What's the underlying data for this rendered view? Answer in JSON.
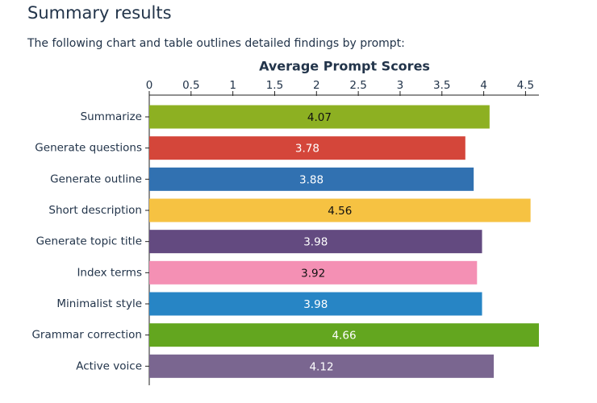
{
  "header": {
    "title": "Summary results",
    "intro": "The following chart and table outlines detailed findings by prompt:"
  },
  "chart_data": {
    "type": "bar",
    "orientation": "horizontal",
    "title": "Average Prompt Scores",
    "categories": [
      "Summarize",
      "Generate questions",
      "Generate outline",
      "Short description",
      "Generate topic title",
      "Index terms",
      "Minimalist style",
      "Grammar correction",
      "Active voice"
    ],
    "values": [
      4.07,
      3.78,
      3.88,
      4.56,
      3.98,
      3.92,
      3.98,
      4.66,
      4.12
    ],
    "colors": [
      "#8db022",
      "#d4463a",
      "#3171b1",
      "#f6c242",
      "#634a80",
      "#f490b4",
      "#2785c5",
      "#63a61f",
      "#7a6690"
    ],
    "xlim": [
      0,
      4.66
    ],
    "xticks": [
      0,
      0.5,
      1,
      1.5,
      2,
      2.5,
      3,
      3.5,
      4,
      4.5
    ]
  }
}
